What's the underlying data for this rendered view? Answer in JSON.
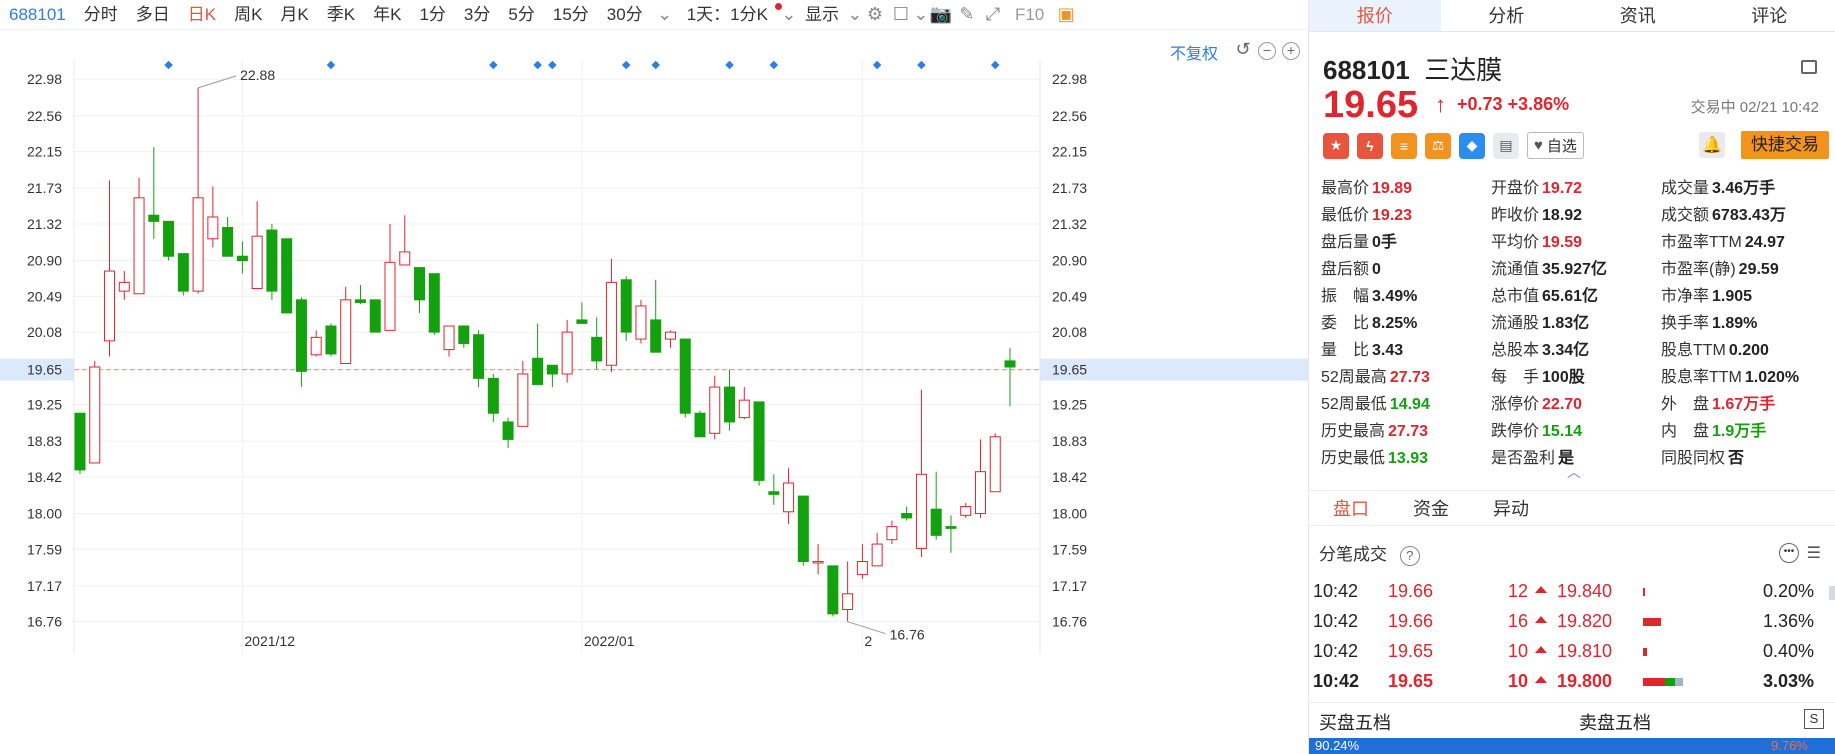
{
  "toolbar": {
    "code": "688101",
    "periods": [
      "分时",
      "多日",
      "日K",
      "周K",
      "月K",
      "季K",
      "年K",
      "1分",
      "3分",
      "5分",
      "15分",
      "30分"
    ],
    "active_period": "日K",
    "interval_select": "1天：1分K",
    "display_label": "显示",
    "f10_label": "F10"
  },
  "chart": {
    "fuquan_label": "不复权",
    "y_ticks": [
      "22.98",
      "22.56",
      "22.15",
      "21.73",
      "21.32",
      "20.90",
      "20.49",
      "20.08",
      "19.65",
      "19.25",
      "18.83",
      "18.42",
      "18.00",
      "17.59",
      "17.17",
      "16.76"
    ],
    "x_ticks": [
      "2021/12",
      "2022/01",
      "2"
    ],
    "high_label": "22.88",
    "low_label": "16.76",
    "current_price_label": "19.65",
    "colors": {
      "up": "#e0252d",
      "down": "#13a10e",
      "marker": "#2b7de9",
      "price_line": "#e8a02f"
    }
  },
  "chart_data": {
    "type": "candlestick",
    "y_range": [
      16.55,
      23.2
    ],
    "candles": [
      {
        "o": 19.15,
        "c": 18.5,
        "h": 19.15,
        "l": 18.45
      },
      {
        "o": 18.58,
        "c": 19.68,
        "h": 19.75,
        "l": 18.58
      },
      {
        "o": 19.98,
        "c": 20.78,
        "h": 21.82,
        "l": 19.8
      },
      {
        "o": 20.55,
        "c": 20.65,
        "h": 20.78,
        "l": 20.45
      },
      {
        "o": 20.52,
        "c": 21.62,
        "h": 21.85,
        "l": 20.52
      },
      {
        "o": 21.42,
        "c": 21.35,
        "h": 22.2,
        "l": 21.15
      },
      {
        "o": 21.35,
        "c": 20.95,
        "h": 21.35,
        "l": 20.9
      },
      {
        "o": 20.98,
        "c": 20.55,
        "h": 20.98,
        "l": 20.5
      },
      {
        "o": 20.55,
        "c": 21.62,
        "h": 22.88,
        "l": 20.52
      },
      {
        "o": 21.15,
        "c": 21.4,
        "h": 21.75,
        "l": 21.05
      },
      {
        "o": 21.28,
        "c": 20.95,
        "h": 21.4,
        "l": 20.95
      },
      {
        "o": 20.95,
        "c": 20.9,
        "h": 21.12,
        "l": 20.75
      },
      {
        "o": 20.58,
        "c": 21.18,
        "h": 21.58,
        "l": 20.58
      },
      {
        "o": 21.25,
        "c": 20.55,
        "h": 21.32,
        "l": 20.45
      },
      {
        "o": 21.15,
        "c": 20.3,
        "h": 21.15,
        "l": 20.3
      },
      {
        "o": 20.45,
        "c": 19.63,
        "h": 20.48,
        "l": 19.45
      },
      {
        "o": 19.82,
        "c": 20.02,
        "h": 20.1,
        "l": 19.8
      },
      {
        "o": 20.15,
        "c": 19.83,
        "h": 20.18,
        "l": 19.8
      },
      {
        "o": 19.72,
        "c": 20.45,
        "h": 20.6,
        "l": 19.72
      },
      {
        "o": 20.45,
        "c": 20.42,
        "h": 20.62,
        "l": 20.4
      },
      {
        "o": 20.45,
        "c": 20.08,
        "h": 20.45,
        "l": 20.08
      },
      {
        "o": 20.1,
        "c": 20.88,
        "h": 21.32,
        "l": 20.1
      },
      {
        "o": 20.85,
        "c": 21.0,
        "h": 21.42,
        "l": 20.85
      },
      {
        "o": 20.82,
        "c": 20.45,
        "h": 20.82,
        "l": 20.3
      },
      {
        "o": 20.75,
        "c": 20.08,
        "h": 20.75,
        "l": 20.05
      },
      {
        "o": 19.88,
        "c": 20.15,
        "h": 20.15,
        "l": 19.8
      },
      {
        "o": 20.15,
        "c": 19.95,
        "h": 20.15,
        "l": 19.9
      },
      {
        "o": 20.05,
        "c": 19.55,
        "h": 20.1,
        "l": 19.45
      },
      {
        "o": 19.55,
        "c": 19.15,
        "h": 19.6,
        "l": 19.05
      },
      {
        "o": 19.05,
        "c": 18.85,
        "h": 19.1,
        "l": 18.75
      },
      {
        "o": 19.0,
        "c": 19.6,
        "h": 19.75,
        "l": 19.0
      },
      {
        "o": 19.78,
        "c": 19.48,
        "h": 20.18,
        "l": 19.48
      },
      {
        "o": 19.7,
        "c": 19.6,
        "h": 19.7,
        "l": 19.45
      },
      {
        "o": 19.6,
        "c": 20.08,
        "h": 20.22,
        "l": 19.5
      },
      {
        "o": 20.22,
        "c": 20.18,
        "h": 20.42,
        "l": 20.18
      },
      {
        "o": 20.02,
        "c": 19.75,
        "h": 20.25,
        "l": 19.65
      },
      {
        "o": 19.7,
        "c": 20.65,
        "h": 20.92,
        "l": 19.62
      },
      {
        "o": 20.68,
        "c": 20.08,
        "h": 20.72,
        "l": 19.98
      },
      {
        "o": 20.0,
        "c": 20.38,
        "h": 20.45,
        "l": 19.95
      },
      {
        "o": 20.22,
        "c": 19.85,
        "h": 20.68,
        "l": 19.85
      },
      {
        "o": 20.0,
        "c": 20.08,
        "h": 20.1,
        "l": 19.9
      },
      {
        "o": 20.0,
        "c": 19.15,
        "h": 20.0,
        "l": 19.1
      },
      {
        "o": 19.15,
        "c": 18.88,
        "h": 19.18,
        "l": 18.88
      },
      {
        "o": 18.92,
        "c": 19.45,
        "h": 19.58,
        "l": 18.85
      },
      {
        "o": 19.45,
        "c": 19.05,
        "h": 19.65,
        "l": 18.95
      },
      {
        "o": 19.1,
        "c": 19.3,
        "h": 19.45,
        "l": 19.08
      },
      {
        "o": 19.28,
        "c": 18.38,
        "h": 19.28,
        "l": 18.32
      },
      {
        "o": 18.25,
        "c": 18.22,
        "h": 18.45,
        "l": 18.1
      },
      {
        "o": 18.02,
        "c": 18.35,
        "h": 18.52,
        "l": 17.88
      },
      {
        "o": 18.2,
        "c": 17.45,
        "h": 18.2,
        "l": 17.4
      },
      {
        "o": 17.45,
        "c": 17.45,
        "h": 17.65,
        "l": 17.3
      },
      {
        "o": 17.4,
        "c": 16.85,
        "h": 17.4,
        "l": 16.82
      },
      {
        "o": 16.9,
        "c": 17.08,
        "h": 17.45,
        "l": 16.76
      },
      {
        "o": 17.3,
        "c": 17.45,
        "h": 17.65,
        "l": 17.25
      },
      {
        "o": 17.4,
        "c": 17.65,
        "h": 17.78,
        "l": 17.4
      },
      {
        "o": 17.7,
        "c": 17.85,
        "h": 17.92,
        "l": 17.65
      },
      {
        "o": 18.0,
        "c": 17.95,
        "h": 18.08,
        "l": 17.92
      },
      {
        "o": 17.6,
        "c": 18.45,
        "h": 19.42,
        "l": 17.5
      },
      {
        "o": 18.05,
        "c": 17.75,
        "h": 18.48,
        "l": 17.7
      },
      {
        "o": 17.85,
        "c": 17.83,
        "h": 17.98,
        "l": 17.55
      },
      {
        "o": 17.98,
        "c": 18.08,
        "h": 18.12,
        "l": 17.95
      },
      {
        "o": 18.0,
        "c": 18.48,
        "h": 18.85,
        "l": 17.95
      },
      {
        "o": 18.25,
        "c": 18.88,
        "h": 18.92,
        "l": 18.25
      },
      {
        "o": 19.75,
        "c": 19.68,
        "h": 19.9,
        "l": 19.23
      }
    ],
    "markers_at": [
      6,
      17,
      28,
      31,
      32,
      37,
      39,
      44,
      47,
      54,
      57,
      62
    ],
    "x_ticks_at": [
      {
        "label": "2021/12",
        "index": 11
      },
      {
        "label": "2022/01",
        "index": 34
      },
      {
        "label": "2",
        "index": 53
      }
    ],
    "current_price": 19.65
  },
  "tabs": [
    "报价",
    "分析",
    "资讯",
    "评论"
  ],
  "active_tab": "报价",
  "stock": {
    "code": "688101",
    "name": "三达膜",
    "price": "19.65",
    "arrow": "↑",
    "change": "+0.73 +3.86%",
    "status": "交易中 02/21 10:42",
    "watch_label": "自选",
    "quick_trade_label": "快捷交易"
  },
  "stats": [
    [
      {
        "label": "最高价",
        "value": "19.89",
        "color": "red"
      },
      {
        "label": "开盘价",
        "value": "19.72",
        "color": "red"
      },
      {
        "label": "成交量",
        "value": "3.46万手"
      }
    ],
    [
      {
        "label": "最低价",
        "value": "19.23",
        "color": "red"
      },
      {
        "label": "昨收价",
        "value": "18.92"
      },
      {
        "label": "成交额",
        "value": "6783.43万"
      }
    ],
    [
      {
        "label": "盘后量",
        "value": "0手"
      },
      {
        "label": "平均价",
        "value": "19.59",
        "color": "red"
      },
      {
        "label": "市盈率TTM",
        "value": "24.97"
      }
    ],
    [
      {
        "label": "盘后额",
        "value": "0"
      },
      {
        "label": "流通值",
        "value": "35.927亿"
      },
      {
        "label": "市盈率(静)",
        "value": "29.59"
      }
    ],
    [
      {
        "label": "振　幅",
        "value": "3.49%"
      },
      {
        "label": "总市值",
        "value": "65.61亿"
      },
      {
        "label": "市净率",
        "value": "1.905"
      }
    ],
    [
      {
        "label": "委　比",
        "value": "8.25%"
      },
      {
        "label": "流通股",
        "value": "1.83亿"
      },
      {
        "label": "换手率",
        "value": "1.89%"
      }
    ],
    [
      {
        "label": "量　比",
        "value": "3.43"
      },
      {
        "label": "总股本",
        "value": "3.34亿"
      },
      {
        "label": "股息TTM",
        "value": "0.200"
      }
    ],
    [
      {
        "label": "52周最高",
        "value": "27.73",
        "color": "red"
      },
      {
        "label": "每　手",
        "value": "100股"
      },
      {
        "label": "股息率TTM",
        "value": "1.020%"
      }
    ],
    [
      {
        "label": "52周最低",
        "value": "14.94",
        "color": "green"
      },
      {
        "label": "涨停价",
        "value": "22.70",
        "color": "red"
      },
      {
        "label": "外　盘",
        "value": "1.67万手",
        "color": "red"
      }
    ],
    [
      {
        "label": "历史最高",
        "value": "27.73",
        "color": "red"
      },
      {
        "label": "跌停价",
        "value": "15.14",
        "color": "green"
      },
      {
        "label": "内　盘",
        "value": "1.9万手",
        "color": "green"
      }
    ],
    [
      {
        "label": "历史最低",
        "value": "13.93",
        "color": "green"
      },
      {
        "label": "是否盈利",
        "value": "是"
      },
      {
        "label": "同股同权",
        "value": "否"
      }
    ]
  ],
  "sub_tabs": [
    "盘口",
    "资金",
    "异动"
  ],
  "ticks_title": "分笔成交",
  "ticks": [
    {
      "time": "10:42",
      "price": "19.66",
      "vol": "12",
      "price2": "19.840",
      "pct": "0.20%",
      "bar": 0.02
    },
    {
      "time": "10:42",
      "price": "19.66",
      "vol": "16",
      "price2": "19.820",
      "pct": "1.36%",
      "bar": 0.45
    },
    {
      "time": "10:42",
      "price": "19.65",
      "vol": "10",
      "price2": "19.810",
      "pct": "0.40%",
      "bar": 0.1
    },
    {
      "time": "10:42",
      "price": "19.65",
      "vol": "10",
      "price2": "19.800",
      "pct": "3.03%",
      "bar": 1.0
    }
  ],
  "five": {
    "buy_label": "买盘五档",
    "sell_label": "卖盘五档",
    "left_pct": "90.24%",
    "right_pct": "9.76%"
  }
}
